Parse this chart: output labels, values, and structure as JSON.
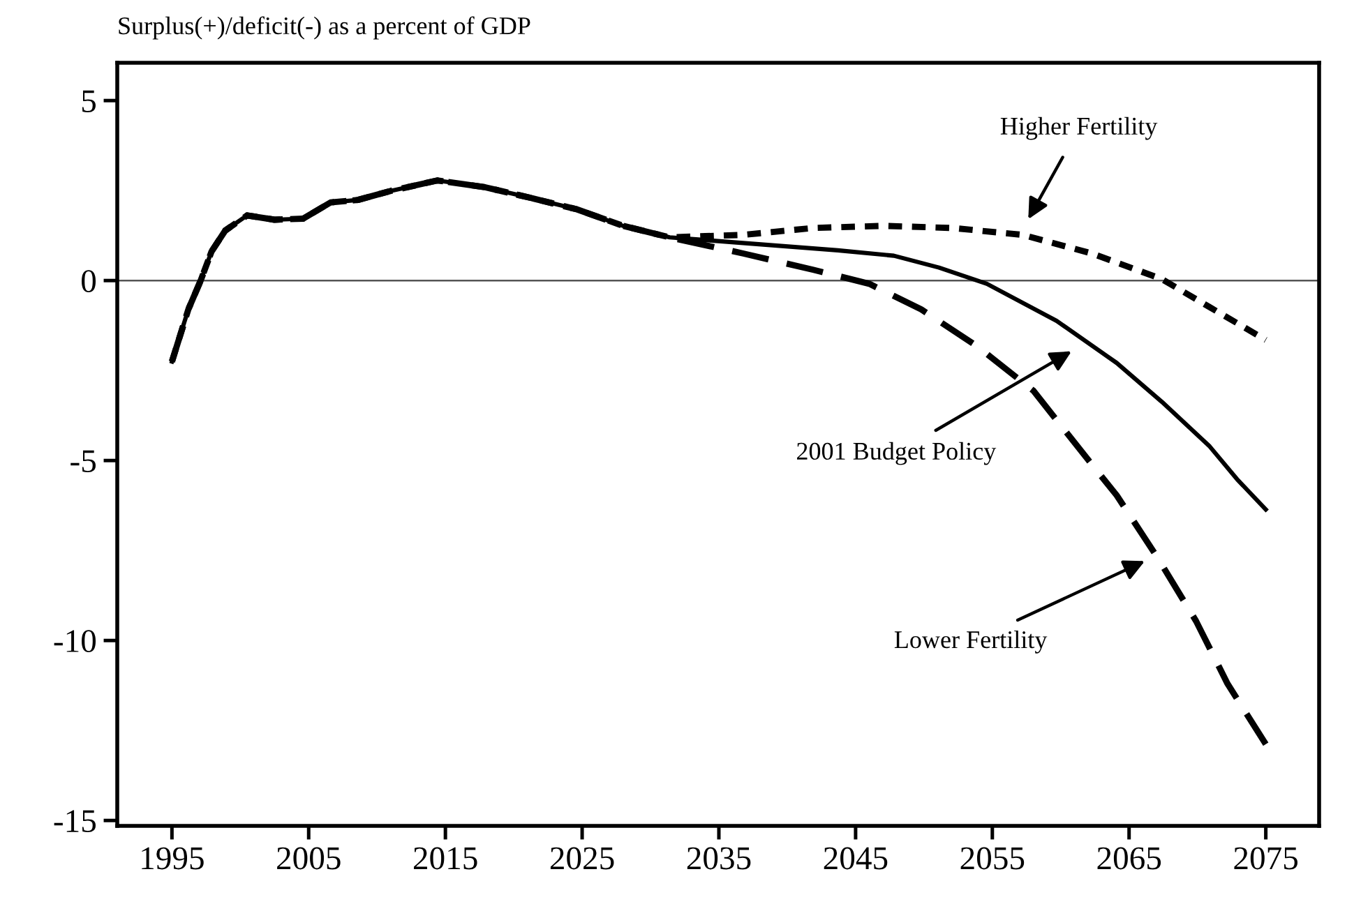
{
  "chart_data": {
    "type": "line",
    "ylabel": "Surplus(+)/deficit(-) as a percent of GDP",
    "series": [
      {
        "color": "#000000",
        "line_style": "solid",
        "x": [
          1995,
          1996.2,
          1997.1,
          1997.9,
          1998.9,
          2000.5,
          2002.5,
          2004.6,
          2006.6,
          2008.6,
          2011,
          2014.4,
          2017.8,
          2021.2,
          2024.6,
          2028,
          2031.4,
          2033.5,
          2043.7,
          2047.8,
          2051.1,
          2054.6,
          2059.7,
          2064.1,
          2067.4,
          2070.9,
          2072.9,
          2075
        ],
        "values": [
          -2.25,
          -0.8,
          0,
          0.81,
          1.39,
          1.81,
          1.69,
          1.72,
          2.17,
          2.24,
          2.49,
          2.78,
          2.6,
          2.3,
          1.98,
          1.52,
          1.2,
          1.14,
          0.84,
          0.69,
          0.36,
          -0.09,
          -1.12,
          -2.29,
          -3.37,
          -4.61,
          -5.52,
          -6.36
        ]
      },
      {
        "color": "#000000",
        "line_style": "dotted",
        "x": [
          1995,
          1996.2,
          1997.1,
          1997.9,
          1998.9,
          2000.5,
          2002.5,
          2004.6,
          2006.6,
          2008.6,
          2011,
          2014.4,
          2017.8,
          2021.2,
          2024.6,
          2028,
          2031.4,
          2036.8,
          2041.9,
          2047,
          2052.1,
          2057.2,
          2062.3,
          2067.4,
          2070.9,
          2075
        ],
        "values": [
          -2.25,
          -0.8,
          0,
          0.81,
          1.39,
          1.81,
          1.69,
          1.72,
          2.17,
          2.24,
          2.49,
          2.78,
          2.6,
          2.3,
          1.98,
          1.52,
          1.2,
          1.27,
          1.46,
          1.52,
          1.46,
          1.27,
          0.75,
          0.04,
          -0.74,
          -1.65
        ]
      },
      {
        "color": "#000000",
        "line_style": "dashed",
        "x": [
          1995,
          1996.2,
          1997.1,
          1997.9,
          1998.9,
          2000.5,
          2002.5,
          2004.6,
          2006.6,
          2008.6,
          2011,
          2014.4,
          2017.8,
          2021.2,
          2024.6,
          2028,
          2031.4,
          2036.8,
          2041.9,
          2046,
          2049.8,
          2053.9,
          2058,
          2062.3,
          2064.1,
          2067.1,
          2069.9,
          2072.2,
          2075
        ],
        "values": [
          -2.25,
          -0.8,
          0,
          0.81,
          1.39,
          1.81,
          1.69,
          1.72,
          2.17,
          2.24,
          2.49,
          2.78,
          2.6,
          2.3,
          1.98,
          1.52,
          1.2,
          0.75,
          0.3,
          -0.09,
          -0.8,
          -1.83,
          -3.06,
          -5.12,
          -5.97,
          -7.71,
          -9.46,
          -11.2,
          -12.88
        ]
      }
    ],
    "xlim": [
      1991,
      2078.9
    ],
    "xticks": [
      1995,
      2005,
      2015,
      2025,
      2035,
      2045,
      2055,
      2065,
      2075
    ],
    "ylim": [
      -15.15,
      6.05
    ],
    "yticks": [
      5,
      0,
      -5,
      -10,
      -15
    ],
    "ref_lines": [
      {
        "axis": "y",
        "value": 0,
        "color": "#555555"
      }
    ],
    "annotations": [
      "Higher Fertility",
      "2001 Budget Policy",
      "Lower Fertility"
    ],
    "grid": false,
    "legend": false
  }
}
